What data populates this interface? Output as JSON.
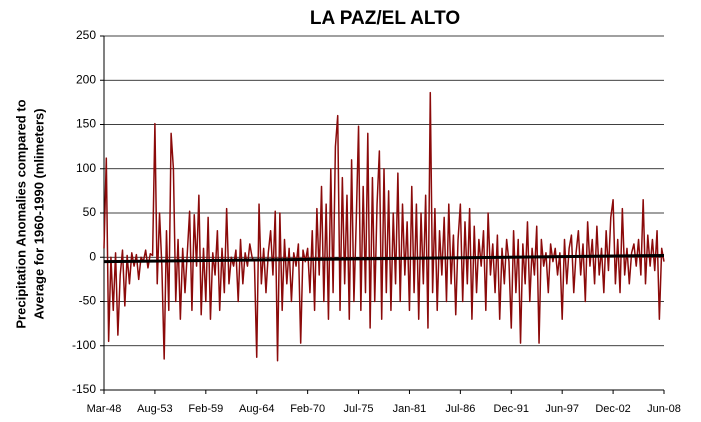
{
  "chart_data": {
    "type": "line",
    "title": "LA PAZ/EL ALTO",
    "y_label_lines": [
      "Precipitation Anomalies compared to",
      "Average for 1960-1990 (mlimeters)"
    ],
    "categories": [
      "Mar-48",
      null,
      null,
      null,
      null,
      null,
      null,
      null,
      null,
      null,
      null,
      null,
      null,
      null,
      null,
      null,
      null,
      null,
      null,
      null,
      null,
      null,
      "Aug-53",
      null,
      null,
      null,
      null,
      null,
      null,
      null,
      null,
      null,
      null,
      null,
      null,
      null,
      null,
      null,
      null,
      null,
      null,
      null,
      null,
      null,
      "Feb-59",
      null,
      null,
      null,
      null,
      null,
      null,
      null,
      null,
      null,
      null,
      null,
      null,
      null,
      null,
      null,
      null,
      null,
      null,
      null,
      null,
      null,
      "Aug-64",
      null,
      null,
      null,
      null,
      null,
      null,
      null,
      null,
      null,
      null,
      null,
      null,
      null,
      null,
      null,
      null,
      null,
      null,
      null,
      null,
      null,
      "Feb-70",
      null,
      null,
      null,
      null,
      null,
      null,
      null,
      null,
      null,
      null,
      null,
      null,
      null,
      null,
      null,
      null,
      null,
      null,
      null,
      null,
      null,
      "Jul-75",
      null,
      null,
      null,
      null,
      null,
      null,
      null,
      null,
      null,
      null,
      null,
      null,
      null,
      null,
      null,
      null,
      null,
      null,
      null,
      null,
      null,
      "Jan-81",
      null,
      null,
      null,
      null,
      null,
      null,
      null,
      null,
      null,
      null,
      null,
      null,
      null,
      null,
      null,
      null,
      null,
      null,
      null,
      null,
      null,
      "Jul-86",
      null,
      null,
      null,
      null,
      null,
      null,
      null,
      null,
      null,
      null,
      null,
      null,
      null,
      null,
      null,
      null,
      null,
      null,
      null,
      null,
      null,
      "Dec-91",
      null,
      null,
      null,
      null,
      null,
      null,
      null,
      null,
      null,
      null,
      null,
      null,
      null,
      null,
      null,
      null,
      null,
      null,
      null,
      null,
      null,
      "Jun-97",
      null,
      null,
      null,
      null,
      null,
      null,
      null,
      null,
      null,
      null,
      null,
      null,
      null,
      null,
      null,
      null,
      null,
      null,
      null,
      null,
      null,
      "Dec-02",
      null,
      null,
      null,
      null,
      null,
      null,
      null,
      null,
      null,
      null,
      null,
      null,
      null,
      null,
      null,
      null,
      null,
      null,
      null,
      null,
      null,
      "Jun-08"
    ],
    "series": [
      {
        "color": "#8b0a0a",
        "values": [
          10,
          112,
          -95,
          0,
          -60,
          5,
          -88,
          -20,
          8,
          -55,
          2,
          -30,
          5,
          -10,
          3,
          -25,
          0,
          -5,
          8,
          -12,
          4,
          2,
          151,
          -30,
          50,
          -10,
          -115,
          30,
          -60,
          140,
          100,
          -50,
          20,
          -70,
          10,
          -40,
          5,
          52,
          -60,
          48,
          -10,
          70,
          -65,
          10,
          -50,
          45,
          -70,
          5,
          -20,
          30,
          -60,
          10,
          -40,
          55,
          -30,
          0,
          -10,
          8,
          -50,
          20,
          -30,
          5,
          -10,
          15,
          0,
          -5,
          -113,
          60,
          -30,
          10,
          -40,
          5,
          30,
          -20,
          52,
          -117,
          50,
          -60,
          20,
          -30,
          10,
          -50,
          5,
          -10,
          15,
          -97,
          8,
          -5,
          10,
          -40,
          30,
          -60,
          55,
          -20,
          80,
          -50,
          60,
          -70,
          100,
          -40,
          125,
          160,
          -60,
          90,
          -30,
          70,
          -70,
          110,
          -50,
          40,
          148,
          -60,
          80,
          -40,
          140,
          -80,
          90,
          -50,
          60,
          120,
          -70,
          100,
          -40,
          75,
          -60,
          50,
          -30,
          95,
          -50,
          60,
          -20,
          40,
          -60,
          80,
          -40,
          60,
          -70,
          50,
          -30,
          70,
          -80,
          186,
          -40,
          55,
          -60,
          30,
          -20,
          45,
          -50,
          60,
          -30,
          25,
          -65,
          20,
          60,
          -50,
          40,
          -30,
          55,
          -70,
          35,
          -40,
          20,
          -10,
          30,
          -60,
          50,
          -20,
          15,
          -40,
          25,
          -70,
          10,
          -30,
          20,
          -5,
          -80,
          30,
          -40,
          20,
          -97,
          15,
          -30,
          40,
          -50,
          10,
          -20,
          35,
          -97,
          20,
          -10,
          5,
          -40,
          15,
          -5,
          10,
          -20,
          5,
          -70,
          20,
          -30,
          10,
          25,
          -40,
          5,
          30,
          -20,
          15,
          -50,
          40,
          -10,
          20,
          -30,
          35,
          -20,
          10,
          -40,
          30,
          -15,
          45,
          65,
          -30,
          20,
          -40,
          55,
          -20,
          10,
          -30,
          5,
          15,
          -10,
          20,
          -20,
          65,
          -30,
          25,
          -10,
          20,
          -15,
          30,
          -70,
          10,
          -5
        ]
      }
    ],
    "trend_line": {
      "color": "#000000",
      "values": [
        -5,
        2
      ]
    },
    "ylim": [
      -150,
      250
    ],
    "yticks": [
      -150,
      -100,
      -50,
      0,
      50,
      100,
      150,
      200,
      250
    ],
    "grid": true
  }
}
